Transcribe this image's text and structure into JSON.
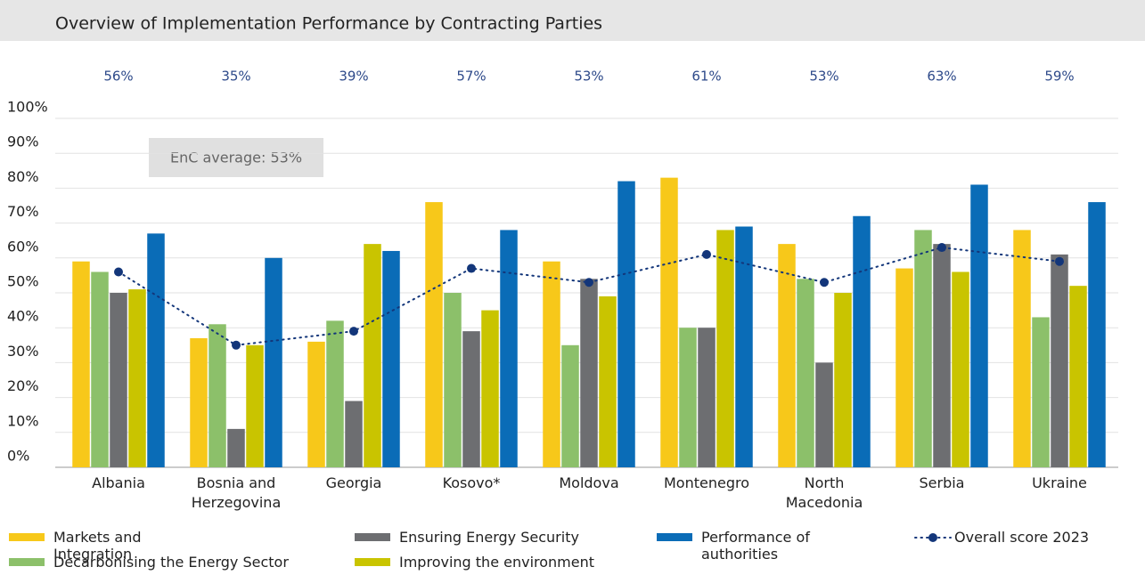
{
  "chart_data": {
    "type": "bar",
    "title": "Overview of Implementation Performance by Contracting Parties",
    "annotation": "EnC average: 53%",
    "categories": [
      "Albania",
      "Bosnia and Herzegovina",
      "Georgia",
      "Kosovo*",
      "Moldova",
      "Montenegro",
      "North Macedonia",
      "Serbia",
      "Ukraine"
    ],
    "series": [
      {
        "name": "Markets and Integration",
        "color": "#f7c81a",
        "values": [
          59,
          37,
          36,
          76,
          59,
          83,
          64,
          57,
          68
        ]
      },
      {
        "name": "Decarbonising the Energy Sector",
        "color": "#8cc06a",
        "values": [
          56,
          41,
          42,
          50,
          35,
          40,
          54,
          68,
          43
        ]
      },
      {
        "name": "Ensuring Energy Security",
        "color": "#6d6e71",
        "values": [
          50,
          11,
          19,
          39,
          54,
          40,
          30,
          64,
          61
        ]
      },
      {
        "name": "Improving the environment",
        "color": "#c9c400",
        "values": [
          51,
          35,
          64,
          45,
          49,
          68,
          50,
          56,
          52
        ]
      },
      {
        "name": "Performance of authorities",
        "color": "#0a6cb7",
        "values": [
          67,
          60,
          62,
          68,
          82,
          69,
          72,
          81,
          76
        ]
      },
      {
        "name": "Overall score 2023",
        "color": "#13367a",
        "kind": "line",
        "values": [
          56,
          35,
          39,
          57,
          53,
          61,
          53,
          63,
          59
        ],
        "value_labels": [
          "56%",
          "35%",
          "39%",
          "57%",
          "53%",
          "61%",
          "53%",
          "63%",
          "59%"
        ]
      }
    ],
    "ylim": [
      0,
      100
    ],
    "yticks": [
      {
        "value": 0,
        "label": "0%"
      },
      {
        "value": 10,
        "label": "10%"
      },
      {
        "value": 20,
        "label": "20%"
      },
      {
        "value": 30,
        "label": "30%"
      },
      {
        "value": 40,
        "label": "40%"
      },
      {
        "value": 50,
        "label": "50%"
      },
      {
        "value": 60,
        "label": "60%"
      },
      {
        "value": 70,
        "label": "70%"
      },
      {
        "value": 80,
        "label": "80%"
      },
      {
        "value": 90,
        "label": "90%"
      },
      {
        "value": 100,
        "label": "100%"
      }
    ],
    "grid": true
  }
}
